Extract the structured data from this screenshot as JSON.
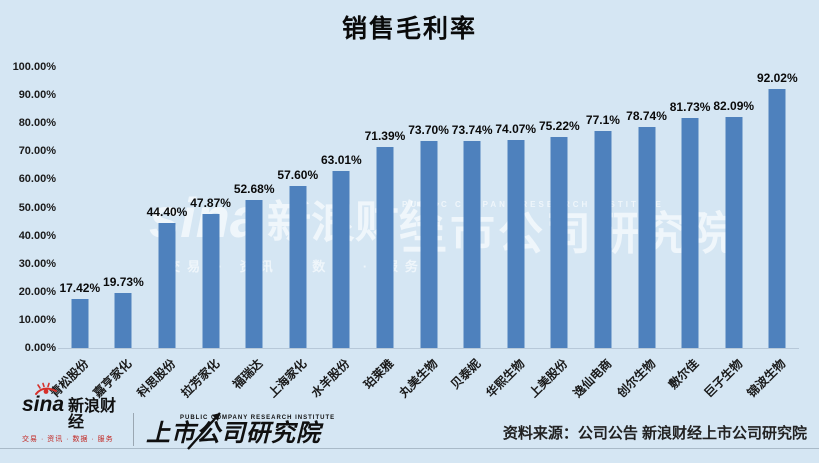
{
  "chart_data": {
    "type": "bar",
    "title": "销售毛利率",
    "categories": [
      "青松股份",
      "嘉亨家化",
      "科思股份",
      "拉芳家化",
      "福瑞达",
      "上海家化",
      "水羊股份",
      "珀莱雅",
      "丸美生物",
      "贝泰妮",
      "华熙生物",
      "上美股份",
      "逸仙电商",
      "创尔生物",
      "敷尔佳",
      "巨子生物",
      "锦波生物"
    ],
    "values": [
      17.42,
      19.73,
      44.4,
      47.87,
      52.68,
      57.6,
      63.01,
      71.39,
      73.7,
      73.74,
      74.07,
      75.22,
      77.1,
      78.74,
      81.73,
      82.09,
      92.02
    ],
    "value_labels": [
      "17.42%",
      "19.73%",
      "44.40%",
      "47.87%",
      "52.68%",
      "57.60%",
      "63.01%",
      "71.39%",
      "73.70%",
      "73.74%",
      "74.07%",
      "75.22%",
      "77.1%",
      "78.74%",
      "81.73%",
      "82.09%",
      "92.02%"
    ],
    "yticks": [
      "100.00%",
      "90.00%",
      "80.00%",
      "70.00%",
      "60.00%",
      "50.00%",
      "40.00%",
      "30.00%",
      "20.00%",
      "10.00%",
      "0.00%"
    ],
    "ylim": [
      0,
      100
    ],
    "xlabel": "",
    "ylabel": "",
    "grid": false,
    "legend": "none",
    "bar_color": "#4e81bd",
    "background_color": "#d5e6f3"
  },
  "watermark": {
    "sina_latin": "sina",
    "sina_cn": "新浪财经",
    "sina_tagline": "交易 · 资讯 · 数据 · 服务",
    "institute_en": "PUBLIC COMPANY RESEARCH INSTITUTE",
    "institute_cn": "上市公司研究院"
  },
  "footer": {
    "sina_latin": "sina",
    "sina_cn": "新浪财经",
    "sina_tagline": "交易 · 资讯 · 数据 · 服务",
    "institute_en": "PUBLIC COMPANY RESEARCH INSTITUTE",
    "institute_cn": "上市公司研究院",
    "source": "资料来源：公司公告 新浪财经上市公司研究院"
  }
}
